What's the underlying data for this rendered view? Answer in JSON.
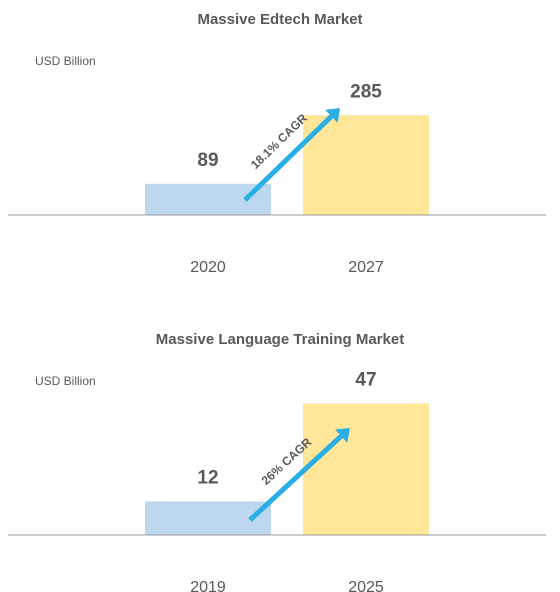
{
  "chart_data": [
    {
      "type": "bar",
      "title": "Massive Edtech Market",
      "y_label": "USD Billion",
      "categories": [
        "2020",
        "2027"
      ],
      "values": [
        89,
        285
      ],
      "colors": [
        "#bdd7ee",
        "#ffe699"
      ],
      "label_colors": [
        "#5b9bd5",
        "#ffc000"
      ],
      "annotation": "18.1% CAGR",
      "annotation_color": "#29aee6",
      "ylim": [
        0,
        400
      ]
    },
    {
      "type": "bar",
      "title": "Massive Language Training Market",
      "y_label": "USD Billion",
      "categories": [
        "2019",
        "2025"
      ],
      "values": [
        12,
        47
      ],
      "colors": [
        "#bdd7ee",
        "#ffe699"
      ],
      "label_colors": [
        "#4472c4",
        "#ffc000"
      ],
      "annotation": "26% CAGR",
      "annotation_color": "#29aee6",
      "ylim": [
        0,
        50
      ]
    }
  ]
}
